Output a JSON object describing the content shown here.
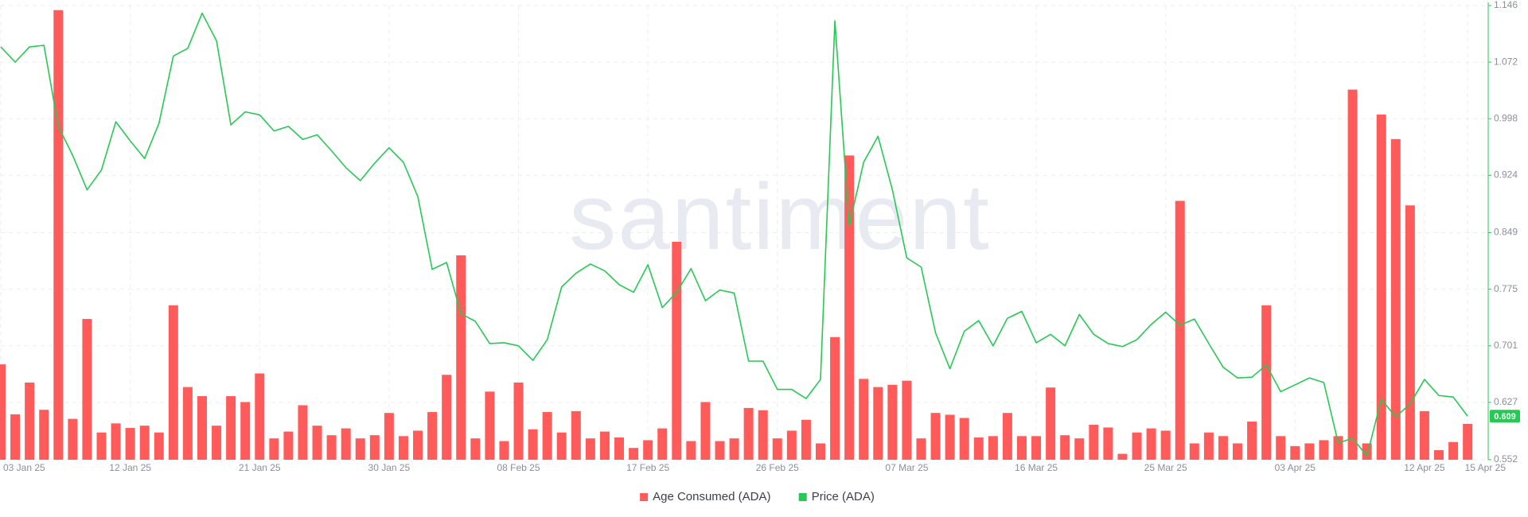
{
  "chart_data": {
    "type": "bar-line",
    "watermark": "santiment",
    "categories": [
      "03 Jan 25",
      null,
      null,
      null,
      null,
      null,
      null,
      null,
      null,
      "12 Jan 25",
      null,
      null,
      null,
      null,
      null,
      null,
      null,
      null,
      "21 Jan 25",
      null,
      null,
      null,
      null,
      null,
      null,
      null,
      null,
      "30 Jan 25",
      null,
      null,
      null,
      null,
      null,
      null,
      null,
      null,
      "08 Feb 25",
      null,
      null,
      null,
      null,
      null,
      null,
      null,
      null,
      "17 Feb 25",
      null,
      null,
      null,
      null,
      null,
      null,
      null,
      null,
      "26 Feb 25",
      null,
      null,
      null,
      null,
      null,
      null,
      null,
      null,
      "07 Mar 25",
      null,
      null,
      null,
      null,
      null,
      null,
      null,
      null,
      "16 Mar 25",
      null,
      null,
      null,
      null,
      null,
      null,
      null,
      null,
      "25 Mar 25",
      null,
      null,
      null,
      null,
      null,
      null,
      null,
      null,
      "03 Apr 25",
      null,
      null,
      null,
      null,
      null,
      null,
      null,
      null,
      "12 Apr 25",
      null,
      null,
      "15 Apr 25"
    ],
    "ylim": [
      0,
      100
    ],
    "y2lim": [
      0.552,
      1.146
    ],
    "y2ticks": [
      0.552,
      0.627,
      0.701,
      0.775,
      0.849,
      0.924,
      0.998,
      1.072,
      1.146
    ],
    "grid": true,
    "legend": "bottom",
    "series": [
      {
        "name": "Age Consumed (ADA)",
        "type": "bar",
        "color": "#ff5b5b",
        "axis": "y",
        "values": [
          21,
          10,
          17,
          11,
          99,
          9,
          31,
          6,
          8,
          7,
          7.5,
          6,
          34,
          16,
          14,
          7.5,
          14,
          12.7,
          19,
          4.7,
          6.2,
          12,
          7.5,
          5.4,
          6.9,
          4.7,
          5.4,
          10.3,
          5.2,
          6.4,
          10.5,
          18.7,
          45,
          4.7,
          15,
          4.1,
          17,
          6.7,
          10.5,
          6,
          10.7,
          4.7,
          6.2,
          4.9,
          2.6,
          4.3,
          6.9,
          48,
          4.1,
          12.7,
          4.1,
          4.7,
          11.4,
          10.9,
          4.7,
          6.4,
          8.8,
          3.6,
          27,
          67,
          17.8,
          16,
          16.5,
          17.4,
          4.7,
          10.3,
          9.9,
          9.2,
          4.9,
          5.2,
          10.3,
          5.2,
          5.2,
          15.9,
          5.4,
          4.7,
          7.7,
          7.1,
          1.3,
          6,
          6.9,
          6.4,
          57,
          3.6,
          6,
          5.2,
          3.6,
          8.4,
          34,
          5.2,
          3,
          3.6,
          4.3,
          5.2,
          81.5,
          3.6,
          76,
          70.6,
          56,
          10.7,
          2.1,
          3.9,
          7.9
        ]
      },
      {
        "name": "Price (ADA)",
        "type": "line",
        "color": "#26c953",
        "axis": "y2",
        "values": [
          1.092,
          1.072,
          1.092,
          1.094,
          0.988,
          0.95,
          0.905,
          0.931,
          0.994,
          0.969,
          0.946,
          0.992,
          1.08,
          1.09,
          1.136,
          1.1,
          0.99,
          1.007,
          1.003,
          0.982,
          0.988,
          0.971,
          0.977,
          0.956,
          0.934,
          0.917,
          0.94,
          0.96,
          0.941,
          0.896,
          0.801,
          0.81,
          0.743,
          0.733,
          0.704,
          0.705,
          0.701,
          0.682,
          0.709,
          0.778,
          0.796,
          0.808,
          0.799,
          0.781,
          0.771,
          0.807,
          0.751,
          0.771,
          0.802,
          0.76,
          0.774,
          0.77,
          0.681,
          0.681,
          0.644,
          0.644,
          0.632,
          0.657,
          1.126,
          0.858,
          0.941,
          0.975,
          0.905,
          0.816,
          0.804,
          0.718,
          0.671,
          0.72,
          0.734,
          0.701,
          0.737,
          0.746,
          0.705,
          0.716,
          0.701,
          0.742,
          0.716,
          0.704,
          0.7,
          0.709,
          0.729,
          0.745,
          0.728,
          0.736,
          0.704,
          0.673,
          0.659,
          0.66,
          0.676,
          0.641,
          0.65,
          0.659,
          0.653,
          0.574,
          0.58,
          0.557,
          0.631,
          0.608,
          0.625,
          0.657,
          0.636,
          0.634,
          0.609
        ]
      }
    ]
  }
}
